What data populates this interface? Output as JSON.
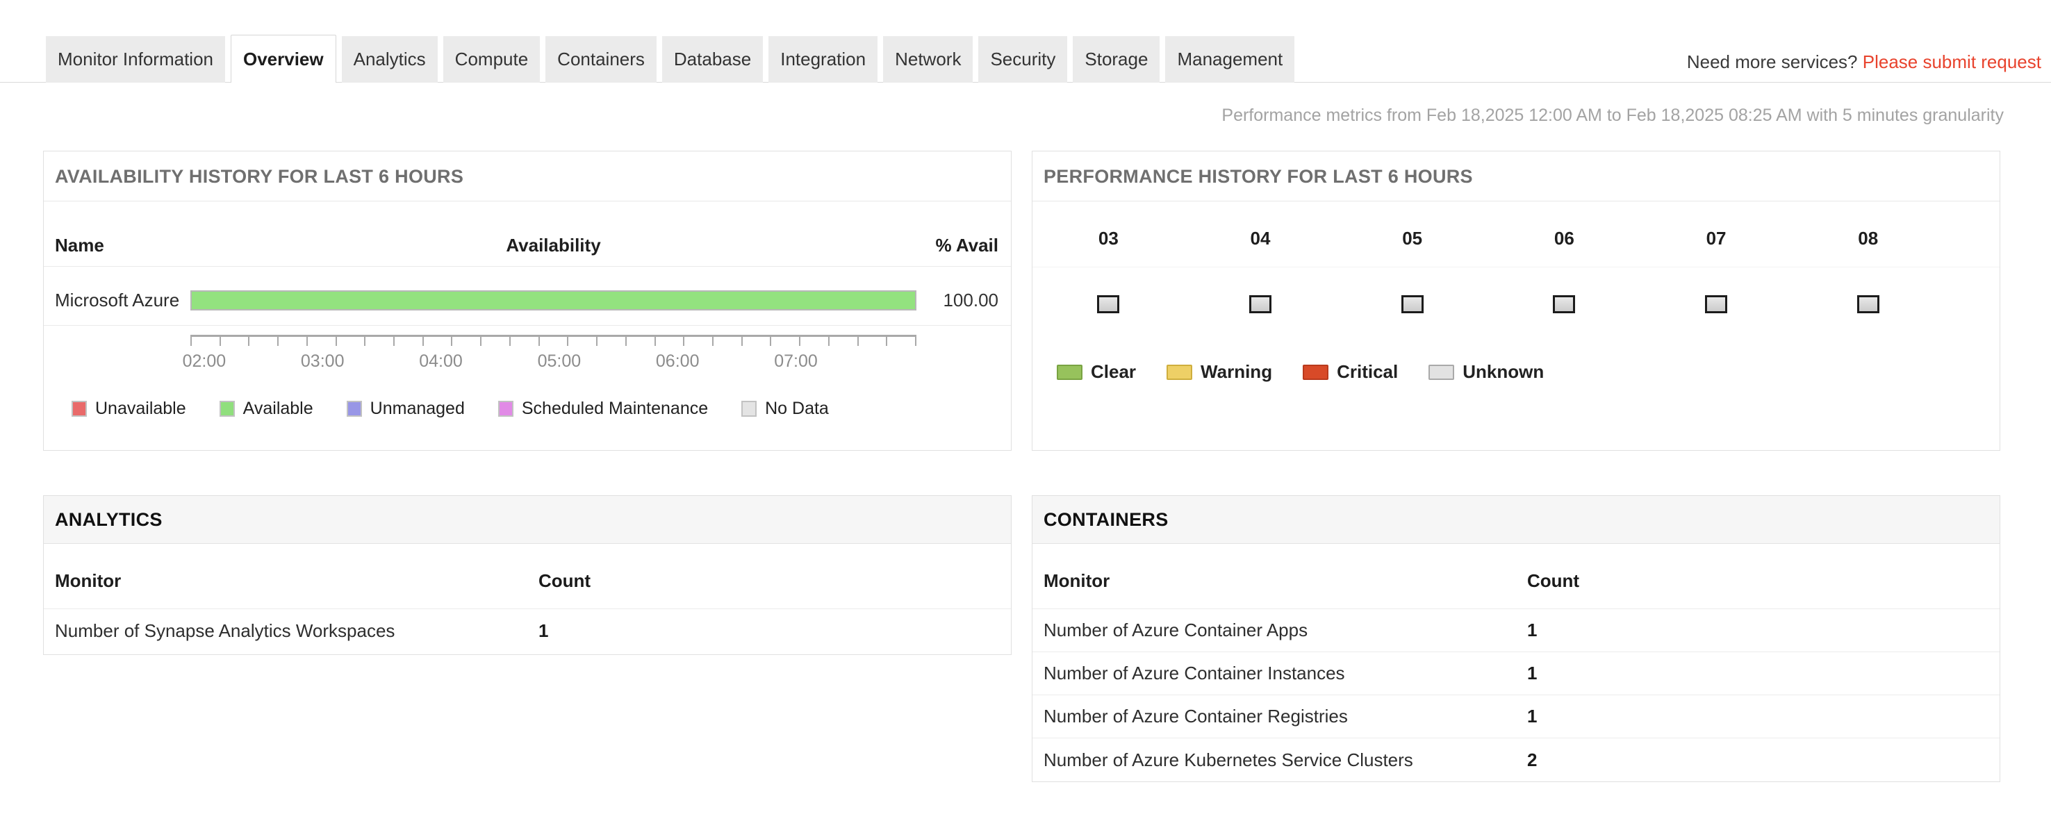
{
  "tabs": {
    "items": [
      {
        "label": "Monitor Information",
        "active": false
      },
      {
        "label": "Overview",
        "active": true
      },
      {
        "label": "Analytics",
        "active": false
      },
      {
        "label": "Compute",
        "active": false
      },
      {
        "label": "Containers",
        "active": false
      },
      {
        "label": "Database",
        "active": false
      },
      {
        "label": "Integration",
        "active": false
      },
      {
        "label": "Network",
        "active": false
      },
      {
        "label": "Security",
        "active": false
      },
      {
        "label": "Storage",
        "active": false
      },
      {
        "label": "Management",
        "active": false
      }
    ]
  },
  "header": {
    "need_more_text": "Need more services? ",
    "submit_request_label": "Please submit request",
    "link_color": "#e8432d",
    "metrics_note": "Performance metrics from Feb 18,2025 12:00 AM to Feb 18,2025 08:25 AM with 5 minutes granularity"
  },
  "availability_panel": {
    "title": "AVAILABILITY HISTORY FOR LAST 6 HOURS",
    "columns": {
      "name": "Name",
      "availability": "Availability",
      "avail_pct": "% Avail"
    },
    "rows": [
      {
        "name": "Microsoft Azure",
        "avail_pct": "100.00",
        "bar_color": "#93e27f",
        "bar_width": "100%"
      }
    ],
    "axis": {
      "tick_count": 26
    },
    "axis_labels": [
      "02:00",
      "03:00",
      "04:00",
      "05:00",
      "06:00",
      "07:00"
    ],
    "legend": [
      {
        "label": "Unavailable",
        "color": "#e96a6a"
      },
      {
        "label": "Available",
        "color": "#90df7d"
      },
      {
        "label": "Unmanaged",
        "color": "#9896e6"
      },
      {
        "label": "Scheduled Maintenance",
        "color": "#e18ae6"
      },
      {
        "label": "No Data",
        "color": "#e4e4e4"
      }
    ]
  },
  "performance_panel": {
    "title": "PERFORMANCE HISTORY FOR LAST 6 HOURS",
    "hours": [
      {
        "label": "03"
      },
      {
        "label": "04"
      },
      {
        "label": "05"
      },
      {
        "label": "06"
      },
      {
        "label": "07"
      },
      {
        "label": "08"
      }
    ],
    "legend": [
      {
        "label": "Clear",
        "fill": "#97c25c",
        "border": "#79a342"
      },
      {
        "label": "Warning",
        "fill": "#eed066",
        "border": "#cfae3d"
      },
      {
        "label": "Critical",
        "fill": "#d84a28",
        "border": "#b93a1d"
      },
      {
        "label": "Unknown",
        "fill": "#e2e2e2",
        "border": "#a9a9a9"
      }
    ]
  },
  "analytics_panel": {
    "title": "ANALYTICS",
    "columns": {
      "monitor": "Monitor",
      "count": "Count"
    },
    "rows": [
      {
        "monitor": "Number of Synapse Analytics Workspaces",
        "count": "1"
      }
    ]
  },
  "containers_panel": {
    "title": "CONTAINERS",
    "columns": {
      "monitor": "Monitor",
      "count": "Count"
    },
    "rows": [
      {
        "monitor": "Number of Azure Container Apps",
        "count": "1"
      },
      {
        "monitor": "Number of Azure Container Instances",
        "count": "1"
      },
      {
        "monitor": "Number of Azure Container Registries",
        "count": "1"
      },
      {
        "monitor": "Number of Azure Kubernetes Service Clusters",
        "count": "2"
      }
    ]
  },
  "chart_data": {
    "type": "bar",
    "title": "Availability History For Last 6 Hours",
    "categories": [
      "Microsoft Azure"
    ],
    "values": [
      100.0
    ],
    "value_unit": "% Avail",
    "x_axis_ticks": [
      "02:00",
      "03:00",
      "04:00",
      "05:00",
      "06:00",
      "07:00"
    ],
    "bar_color": "#93e27f",
    "legend_position": "bottom"
  }
}
